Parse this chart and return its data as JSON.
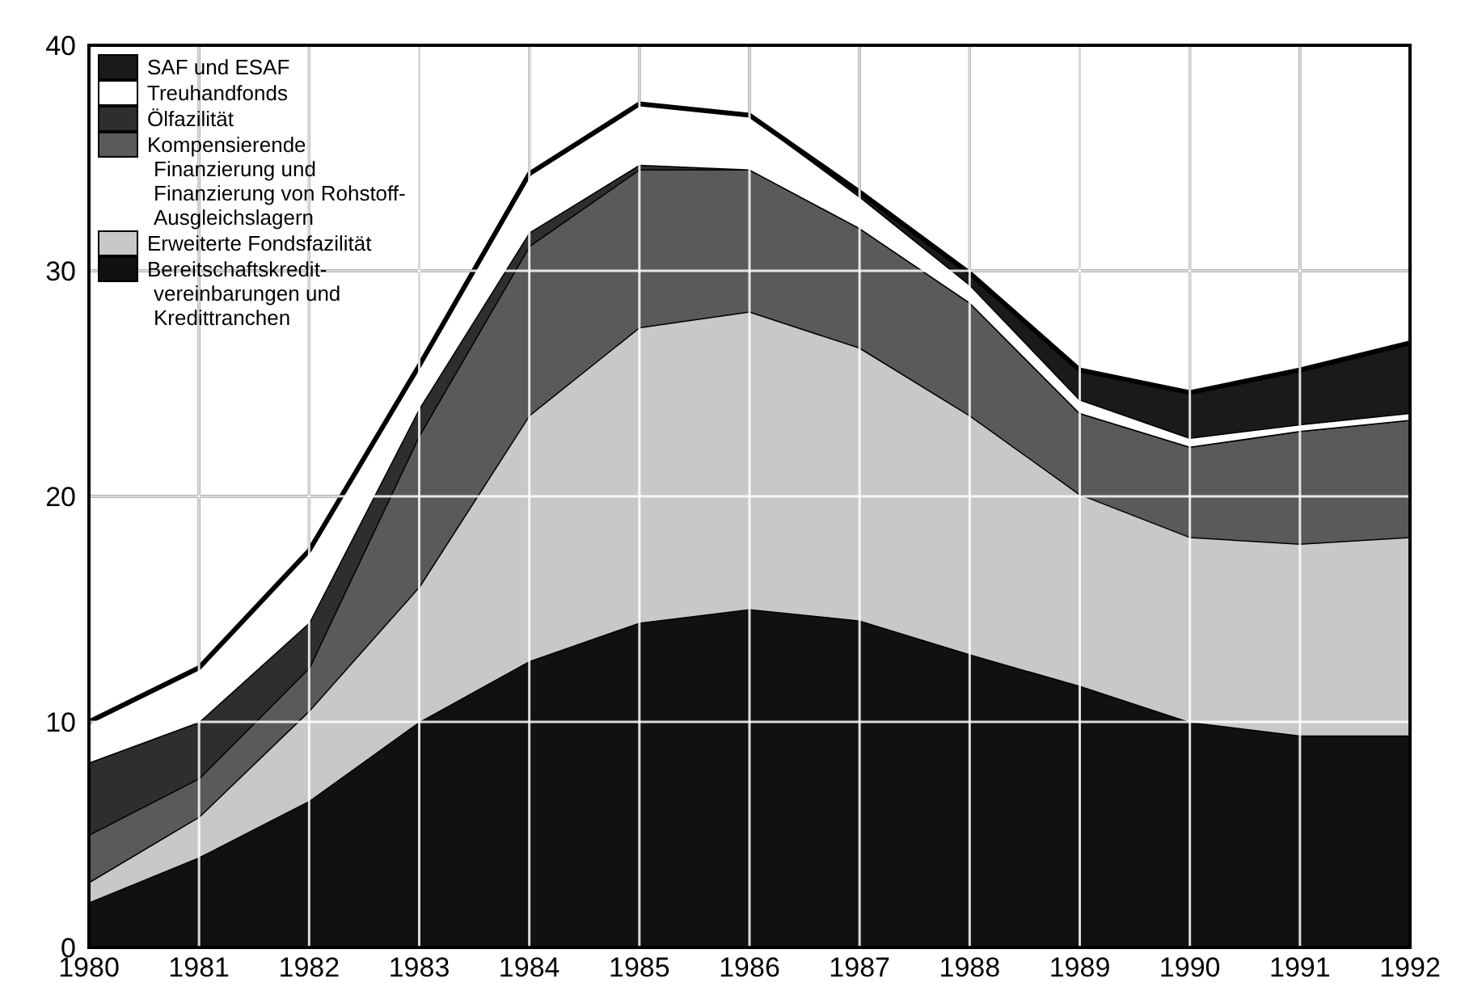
{
  "chart_data": {
    "type": "area",
    "stacked": true,
    "x": [
      1980,
      1981,
      1982,
      1983,
      1984,
      1985,
      1986,
      1987,
      1988,
      1989,
      1990,
      1991,
      1992
    ],
    "xlim": [
      1980,
      1992
    ],
    "xticks": [
      1980,
      1981,
      1982,
      1983,
      1984,
      1985,
      1986,
      1987,
      1988,
      1989,
      1990,
      1991,
      1992
    ],
    "ylim": [
      0,
      40
    ],
    "yticks": [
      0,
      10,
      20,
      30,
      40
    ],
    "grid": true,
    "legend": "top left",
    "series": [
      {
        "name": "Bereitschaftskredit-vereinbarungen und Kredittranchen",
        "color": "#111111",
        "values": [
          2.0,
          4.0,
          6.5,
          10.0,
          12.7,
          14.4,
          15.0,
          14.5,
          13.0,
          11.6,
          10.0,
          9.4,
          9.4
        ]
      },
      {
        "name": "Erweiterte Fondsfazilität",
        "color": "#c8c8c8",
        "values": [
          0.9,
          1.8,
          4.0,
          6.0,
          10.9,
          13.1,
          13.2,
          12.1,
          10.6,
          8.5,
          8.2,
          8.5,
          8.8
        ]
      },
      {
        "name": "Kompensierende Finanzierung und Finanzierung von Rohstoff-Ausgleichslagern",
        "color": "#5a5a5a",
        "values": [
          2.1,
          1.7,
          1.9,
          6.7,
          7.5,
          7.0,
          6.3,
          5.3,
          5.0,
          3.6,
          4.0,
          5.0,
          5.2
        ]
      },
      {
        "name": "Ölfazilität",
        "color": "#2e2e2e",
        "values": [
          3.2,
          2.5,
          2.0,
          1.2,
          0.6,
          0.2,
          0,
          0,
          0,
          0,
          0,
          0,
          0
        ]
      },
      {
        "name": "Treuhandfonds",
        "color": "#ffffff",
        "values": [
          1.8,
          2.4,
          3.2,
          1.9,
          2.6,
          2.7,
          2.4,
          1.4,
          0.8,
          0.6,
          0.4,
          0.3,
          0.3
        ]
      },
      {
        "name": "SAF und ESAF",
        "color": "#1a1a1a",
        "values": [
          0,
          0,
          0,
          0,
          0,
          0,
          0,
          0.2,
          0.5,
          1.3,
          2.0,
          2.4,
          3.1
        ]
      }
    ]
  }
}
